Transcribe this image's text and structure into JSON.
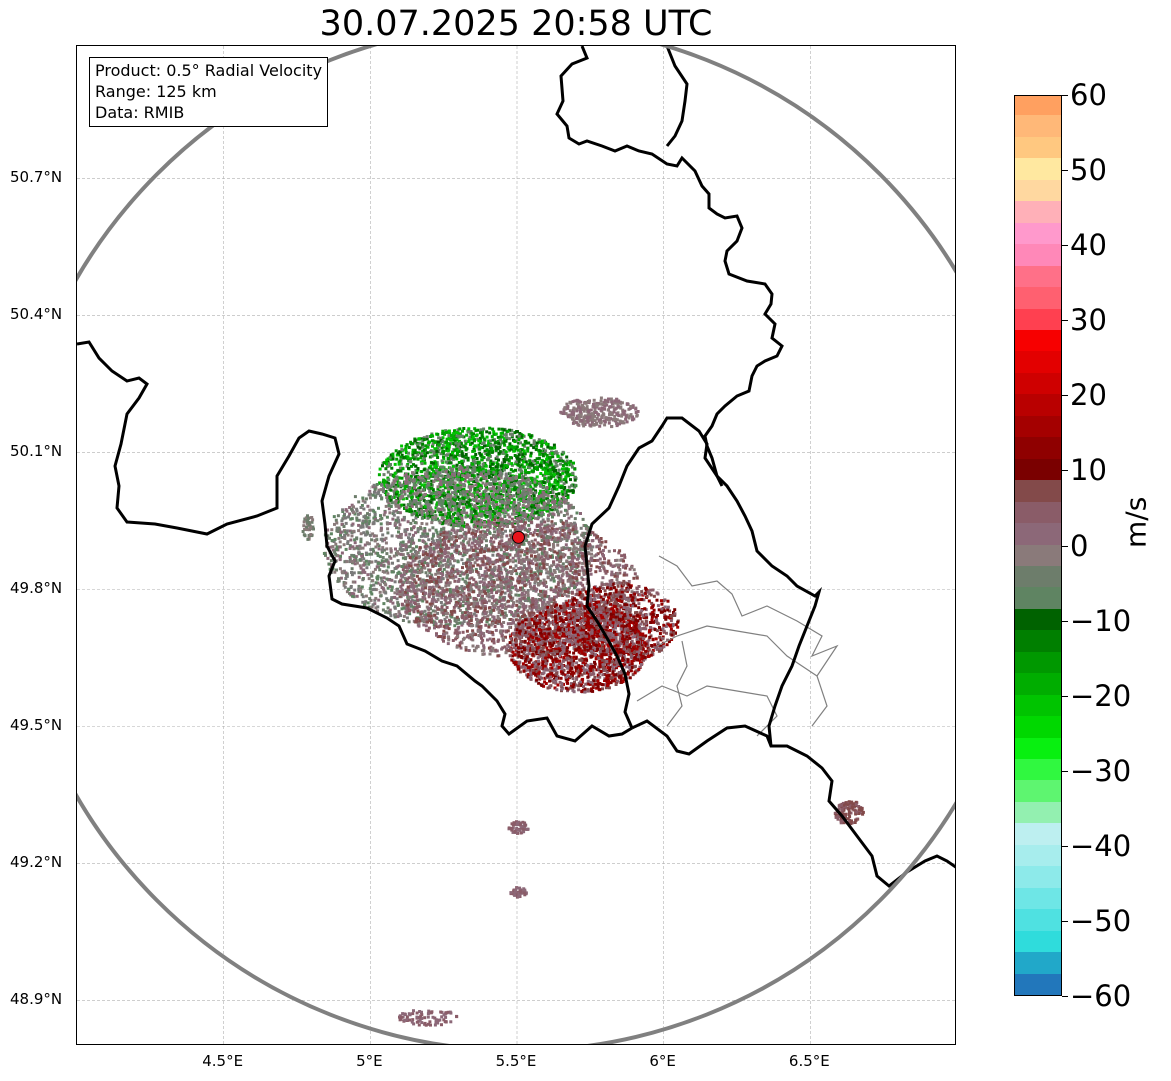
{
  "title": "30.07.2025 20:58 UTC",
  "info": {
    "product": "Product: 0.5° Radial Velocity",
    "range": "Range: 125 km",
    "data": "Data: RMIB"
  },
  "map": {
    "lat_labels": [
      "50.7°N",
      "50.4°N",
      "50.1°N",
      "49.8°N",
      "49.5°N",
      "49.2°N",
      "48.9°N"
    ],
    "lon_labels": [
      "4.5°E",
      "5°E",
      "5.5°E",
      "6°E",
      "6.5°E"
    ],
    "lat_values": [
      50.7,
      50.4,
      50.1,
      49.8,
      49.5,
      49.2,
      48.9
    ],
    "lon_values": [
      4.5,
      5.0,
      5.5,
      6.0,
      6.5
    ],
    "extent": {
      "lon_min": 4.0,
      "lon_max": 7.0,
      "lat_min": 48.8,
      "lat_max": 50.99
    },
    "radar_site": {
      "lon": 5.505,
      "lat": 49.914
    },
    "range_ring_km": 125,
    "range_ring_color": "#808080",
    "border_color": "#000000",
    "admin_border_color": "#808080",
    "radar_marker_color": "#e8141b"
  },
  "colorbar": {
    "unit": "m/s",
    "min": -60,
    "max": 60,
    "tick_values": [
      60,
      50,
      40,
      30,
      20,
      10,
      0,
      -10,
      -20,
      -30,
      -40,
      -50,
      -60
    ],
    "tick_labels": [
      "60",
      "50",
      "40",
      "30",
      "20",
      "10",
      "0",
      "−10",
      "−20",
      "−30",
      "−40",
      "−50",
      "−60"
    ],
    "colors": [
      "#2277bb",
      "#21a8c9",
      "#2fdcdc",
      "#4fe1e1",
      "#6ee6e6",
      "#8deaea",
      "#a7eded",
      "#bdeff0",
      "#93f0b0",
      "#5ef570",
      "#30f840",
      "#08f010",
      "#00d800",
      "#00c400",
      "#00ad00",
      "#009800",
      "#007f00",
      "#006200",
      "#5f8462",
      "#6d7d6b",
      "#8a7a7a",
      "#8c6878",
      "#8a5c68",
      "#834a4a",
      "#7a0000",
      "#8f0000",
      "#a40000",
      "#b90000",
      "#cf0000",
      "#e30000",
      "#f70000",
      "#ff4050",
      "#ff6070",
      "#ff7088",
      "#ff88b8",
      "#ff99cc",
      "#ffb0b8",
      "#ffd8a0",
      "#ffe8a0",
      "#ffc880",
      "#ffb878",
      "#ffa060"
    ]
  }
}
